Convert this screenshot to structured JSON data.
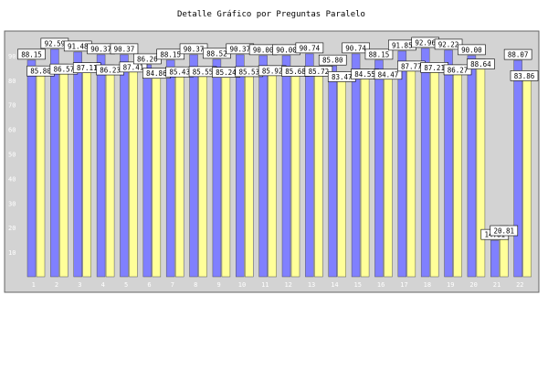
{
  "chart_data": {
    "type": "bar",
    "title": "Detalle Gráfico por Preguntas Paralelo",
    "categories": [
      "1",
      "2",
      "3",
      "4",
      "5",
      "6",
      "7",
      "8",
      "9",
      "10",
      "11",
      "12",
      "13",
      "14",
      "15",
      "16",
      "17",
      "18",
      "19",
      "20",
      "21",
      "22"
    ],
    "ylim": [
      0,
      100
    ],
    "yticks": [
      10,
      20,
      30,
      40,
      50,
      60,
      70,
      80,
      90
    ],
    "grid": false,
    "legend": "none",
    "colors": {
      "plot_bg": "#d3d3d3",
      "blue": "#8080ff",
      "yellow": "#ffff99",
      "label_box": "#ffffff",
      "text": "#000000"
    },
    "series": [
      {
        "color": "#8080ff",
        "values": [
          88.15,
          92.59,
          91.48,
          90.37,
          90.37,
          86.26,
          88.15,
          90.37,
          88.52,
          90.37,
          90.0,
          90.0,
          90.74,
          85.8,
          90.74,
          88.15,
          91.85,
          92.96,
          92.22,
          90.0,
          14.81,
          88.07
        ]
      },
      {
        "color": "#ffff99",
        "values": [
          85.8,
          86.57,
          87.11,
          86.23,
          87.41,
          84.86,
          85.43,
          85.55,
          85.24,
          85.53,
          85.92,
          85.68,
          85.72,
          83.47,
          84.55,
          84.47,
          87.77,
          87.21,
          86.27,
          88.64,
          20.81,
          83.86
        ]
      }
    ]
  }
}
